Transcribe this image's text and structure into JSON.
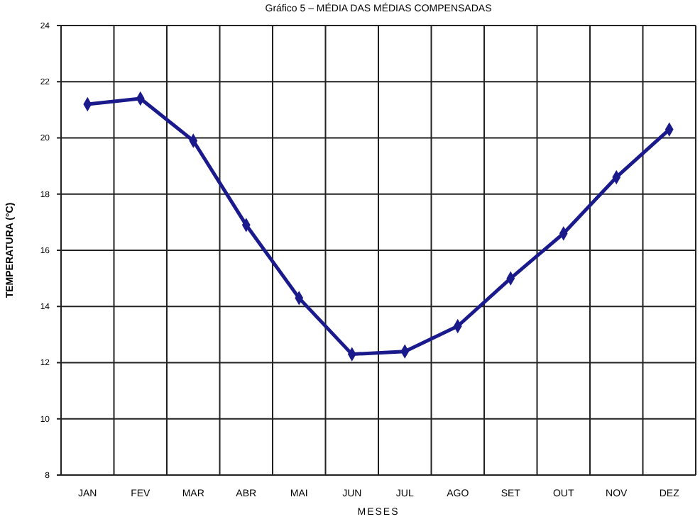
{
  "chart_data": {
    "type": "line",
    "title": "Gráfico 5 – MÉDIA DAS MÉDIAS COMPENSADAS",
    "xlabel": "MESES",
    "ylabel": "TEMPERATURA (°C)",
    "categories": [
      "JAN",
      "FEV",
      "MAR",
      "ABR",
      "MAI",
      "JUN",
      "JUL",
      "AGO",
      "SET",
      "OUT",
      "NOV",
      "DEZ"
    ],
    "series": [
      {
        "color": "#1a1a8c",
        "values": [
          21.2,
          21.4,
          19.9,
          16.9,
          14.3,
          12.3,
          12.4,
          13.3,
          15.0,
          16.6,
          18.6,
          20.3
        ]
      }
    ],
    "ylim": [
      8,
      24
    ],
    "yticks": [
      8,
      10,
      12,
      14,
      16,
      18,
      20,
      22,
      24
    ],
    "grid": true,
    "marker": "diamond",
    "line_style": "solid"
  }
}
